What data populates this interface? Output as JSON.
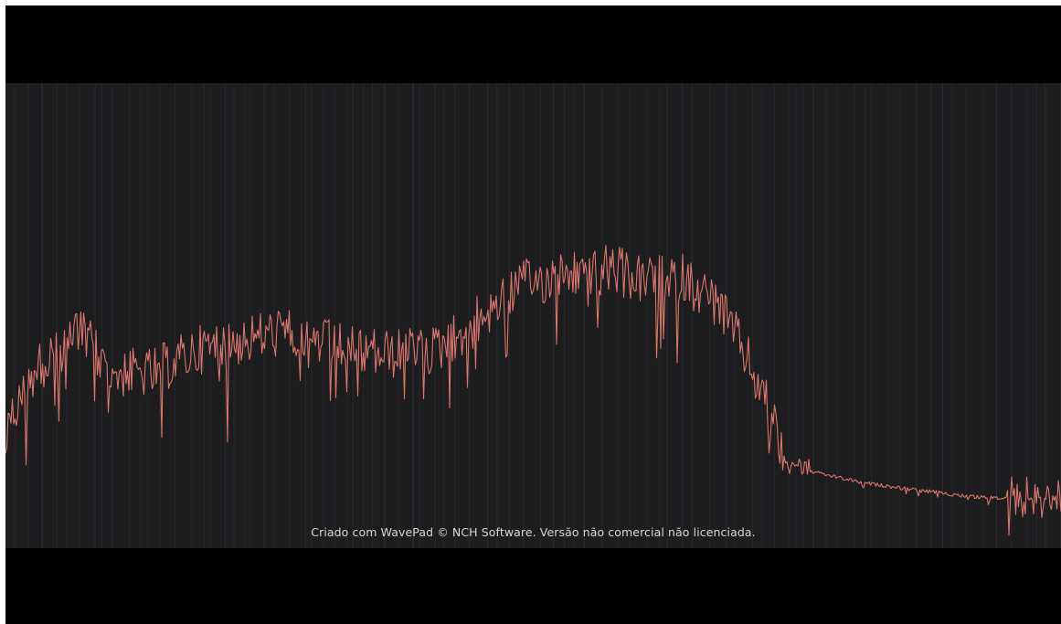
{
  "video": {
    "watermark_text": "Criado com WavePad © NCH Software. Versão não comercial não licenciada."
  },
  "spectrum": {
    "waveform_color": "#d9776f",
    "grid_line_color": "#2e2e32",
    "panel_background": "#1d1d1f",
    "letterbox_color": "#000000"
  }
}
